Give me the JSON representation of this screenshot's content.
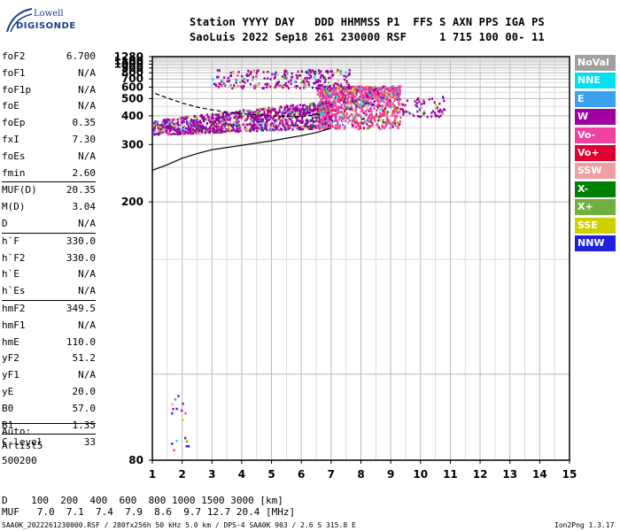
{
  "logo": {
    "line1": "Lowell",
    "line2": "DIGISONDE"
  },
  "header": {
    "row1": "Station YYYY DAY   DDD HHMMSS P1  FFS S AXN PPS IGA PS",
    "row2": "SaoLuis 2022 Sep18 261 230000 RSF     1 715 100 00- 11"
  },
  "params": [
    {
      "k": "foF2",
      "v": "6.700"
    },
    {
      "k": "foF1",
      "v": "N/A"
    },
    {
      "k": "foF1p",
      "v": "N/A"
    },
    {
      "k": "foE",
      "v": "N/A"
    },
    {
      "k": "foEp",
      "v": "0.35"
    },
    {
      "k": "fxI",
      "v": "7.30"
    },
    {
      "k": "foEs",
      "v": "N/A"
    },
    {
      "k": "fmin",
      "v": "2.60"
    },
    {
      "k": "MUF(D)",
      "v": "20.35",
      "sep": true
    },
    {
      "k": "M(D)",
      "v": "3.04"
    },
    {
      "k": "D",
      "v": "N/A"
    },
    {
      "k": "h`F",
      "v": "330.0",
      "sep": true
    },
    {
      "k": "h`F2",
      "v": "330.0"
    },
    {
      "k": "h`E",
      "v": "N/A"
    },
    {
      "k": "h`Es",
      "v": "N/A"
    },
    {
      "k": "hmF2",
      "v": "349.5",
      "sep": true
    },
    {
      "k": "hmF1",
      "v": "N/A"
    },
    {
      "k": "hmE",
      "v": "110.0"
    },
    {
      "k": "yF2",
      "v": "51.2"
    },
    {
      "k": "yF1",
      "v": "N/A"
    },
    {
      "k": "yE",
      "v": "20.0"
    },
    {
      "k": "B0",
      "v": "57.0"
    },
    {
      "k": "B1",
      "v": "1.35"
    },
    {
      "k": "C-level",
      "v": "33",
      "sep": true
    }
  ],
  "auto": {
    "label": "Auto:",
    "artist": "Artist5",
    "version": "500200"
  },
  "legend": [
    {
      "label": "NoVal",
      "color": "#a0a0a0"
    },
    {
      "label": "NNE",
      "color": "#00e0f0"
    },
    {
      "label": "E",
      "color": "#3aa0f0"
    },
    {
      "label": "W",
      "color": "#a000a0"
    },
    {
      "label": "Vo-",
      "color": "#f040a0"
    },
    {
      "label": "Vo+",
      "color": "#e00030"
    },
    {
      "label": "SSW",
      "color": "#f0a0a0"
    },
    {
      "label": "X-",
      "color": "#008000"
    },
    {
      "label": "X+",
      "color": "#70b040"
    },
    {
      "label": "SSE",
      "color": "#d0d000"
    },
    {
      "label": "NNW",
      "color": "#2020e0"
    }
  ],
  "footer": {
    "row_d": "D    100  200  400  600  800 1000 1500 3000 [km]",
    "row_muf": "MUF   7.0  7.1  7.4  7.9  8.6  9.7 12.7 20.4 [MHz]",
    "file_line": "SAA0K_2022261230000.RSF / 280fx256h 50 kHz 5.0 km / DPS-4 SAA0K 903 / 2.6 S 315.8 E",
    "version": "Ion2Png 1.3.17"
  },
  "chart_data": {
    "type": "scatter",
    "title": "",
    "xlabel": "",
    "ylabel": "",
    "xlim": [
      1,
      15
    ],
    "ylim": [
      80,
      1280
    ],
    "y_scale": "reciprocal",
    "x_ticks": [
      1,
      2,
      3,
      4,
      5,
      6,
      7,
      8,
      9,
      10,
      11,
      12,
      13,
      14,
      15
    ],
    "y_ticks": [
      80,
      200,
      300,
      400,
      500,
      600,
      700,
      800,
      900,
      1000,
      1100,
      1280
    ],
    "grid": true,
    "legend_position": "right",
    "traces": [
      {
        "desc": "F-layer main trace",
        "x_range": [
          1.0,
          7.0
        ],
        "y_range": [
          320,
          480
        ],
        "dominant": "W"
      },
      {
        "desc": "F2 vertical/oblique cluster",
        "x_range": [
          6.5,
          9.3
        ],
        "y_range": [
          350,
          620
        ],
        "dominant": "Vo-"
      },
      {
        "desc": "upper spread",
        "x_range": [
          3.0,
          7.6
        ],
        "y_range": [
          600,
          880
        ],
        "dominant": "W"
      },
      {
        "desc": "scattered echoes",
        "x_range": [
          9.3,
          10.8
        ],
        "y_range": [
          400,
          520
        ],
        "dominant": "W"
      },
      {
        "desc": "low echoes",
        "x_range": [
          1.6,
          2.2
        ],
        "y_range": [
          82,
          95
        ],
        "dominant": "NNW"
      }
    ],
    "profile_curve": {
      "x": [
        1.0,
        1.5,
        2.0,
        2.5,
        3.0,
        4.0,
        5.0,
        6.0,
        6.5,
        7.0
      ],
      "y": [
        245,
        255,
        268,
        278,
        287,
        298,
        310,
        325,
        335,
        350
      ]
    },
    "dashed_curve": {
      "x": [
        1.1,
        1.5,
        2.0,
        2.5,
        3.0,
        3.5,
        4.0,
        5.0,
        6.0,
        6.7
      ],
      "y": [
        540,
        505,
        470,
        445,
        430,
        418,
        410,
        400,
        395,
        410
      ]
    }
  }
}
